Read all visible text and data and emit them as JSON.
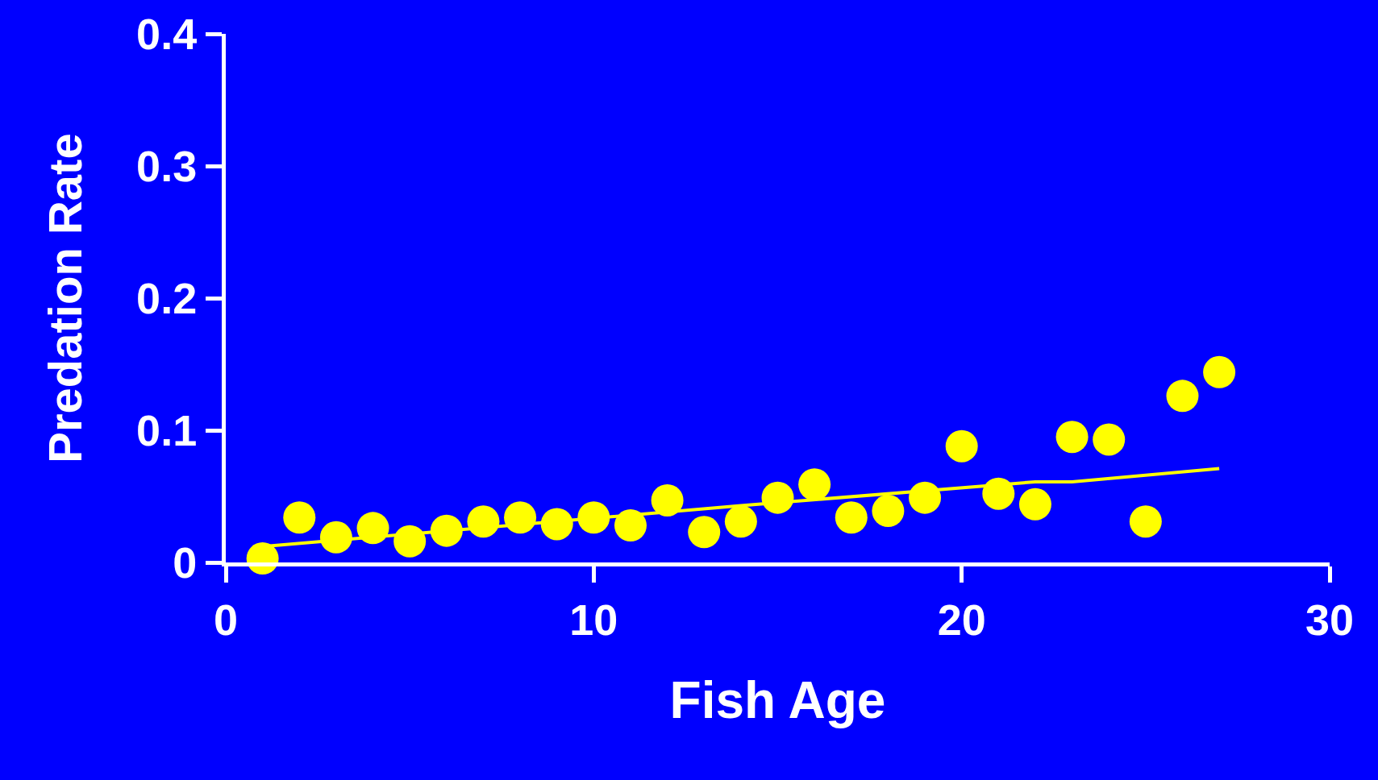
{
  "chart_data": {
    "type": "scatter",
    "xlabel": "Fish Age",
    "ylabel": "Predation Rate",
    "xlim": [
      0,
      30
    ],
    "ylim": [
      0,
      0.4
    ],
    "xticks": [
      0,
      10,
      20,
      30
    ],
    "yticks": [
      0,
      0.1,
      0.2,
      0.3,
      0.4
    ],
    "grid": false,
    "series": [
      {
        "marker": "circle",
        "color": "#ffff00",
        "x": [
          1,
          2,
          3,
          4,
          5,
          6,
          7,
          8,
          9,
          10,
          11,
          12,
          13,
          14,
          15,
          16,
          17,
          18,
          19,
          20,
          21,
          22,
          23,
          24,
          25,
          26,
          27
        ],
        "values": [
          0.003,
          0.034,
          0.019,
          0.026,
          0.016,
          0.024,
          0.031,
          0.034,
          0.029,
          0.034,
          0.028,
          0.047,
          0.023,
          0.031,
          0.049,
          0.059,
          0.034,
          0.039,
          0.049,
          0.088,
          0.052,
          0.044,
          0.095,
          0.093,
          0.031,
          0.126,
          0.144
        ]
      },
      {
        "type": "line",
        "color": "#ffff00",
        "x": [
          1,
          14,
          22,
          23,
          27
        ],
        "values": [
          0.012,
          0.043,
          0.061,
          0.061,
          0.071
        ]
      }
    ]
  }
}
